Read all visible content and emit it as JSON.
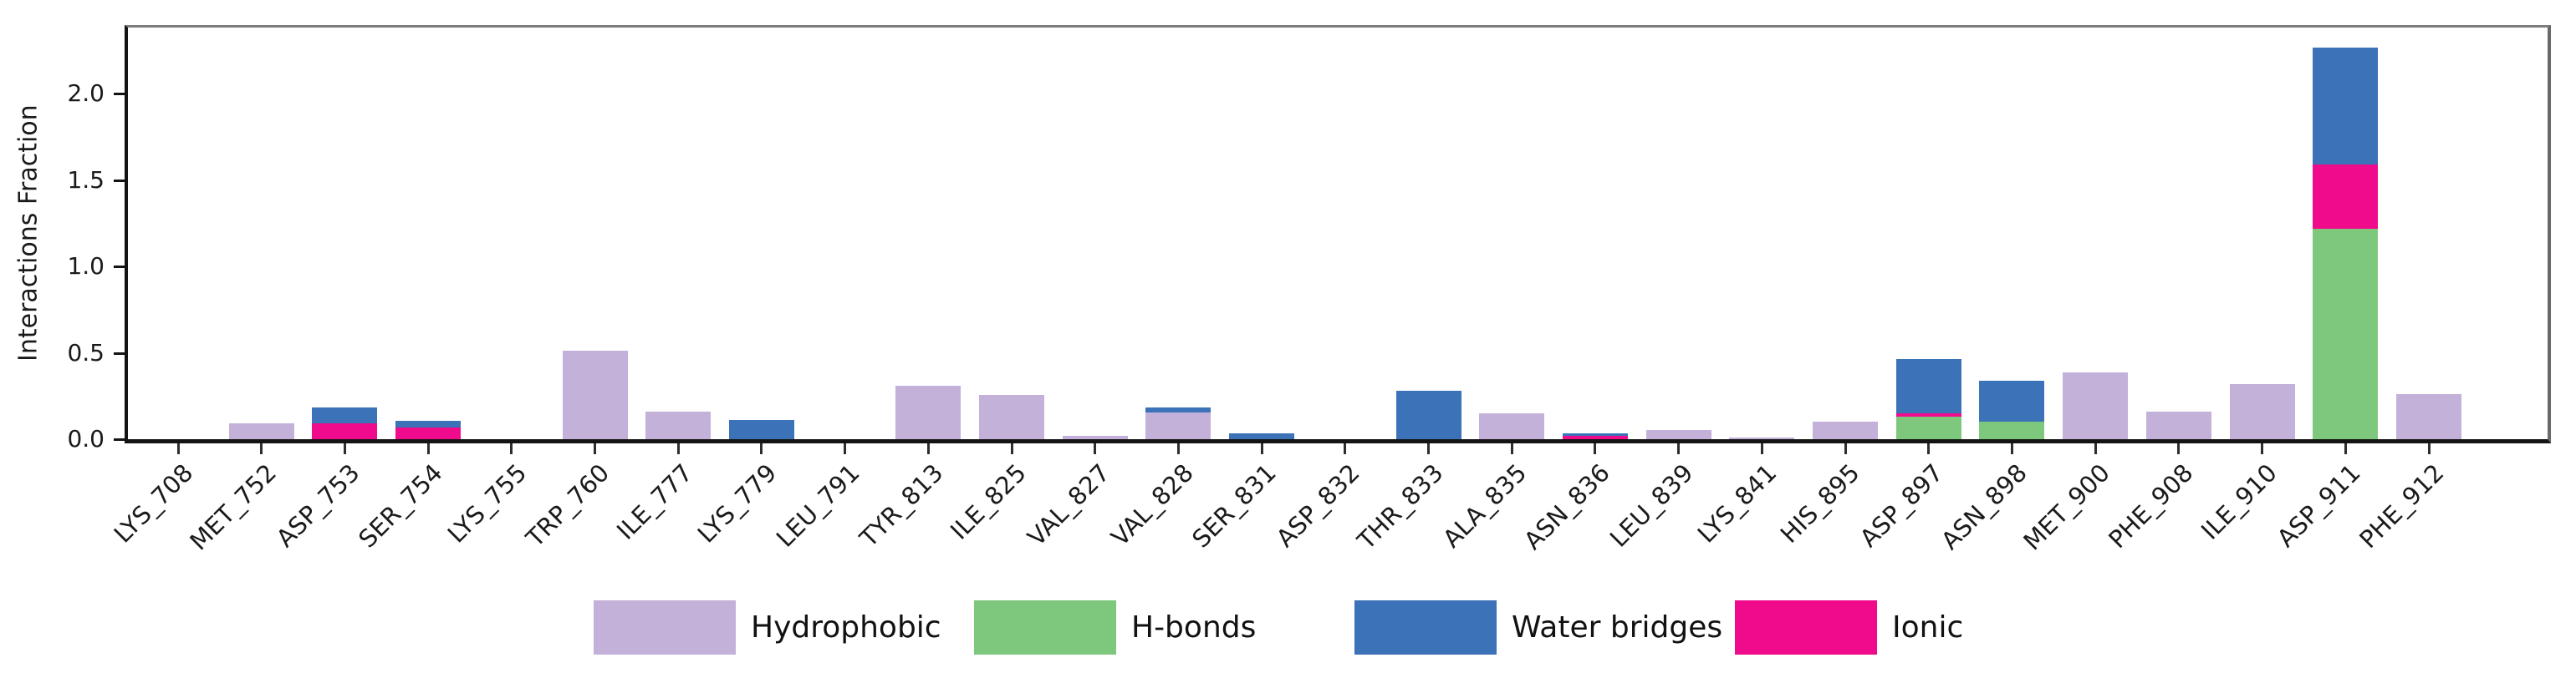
{
  "chart_data": {
    "type": "bar",
    "stacked": true,
    "title": "",
    "xlabel": "",
    "ylabel": "Interactions Fraction",
    "ylim": [
      0,
      2.38
    ],
    "yticks": [
      0.0,
      0.5,
      1.0,
      1.5,
      2.0
    ],
    "ytick_labels": [
      "0.0",
      "0.5",
      "1.0",
      "1.5",
      "2.0"
    ],
    "grid": false,
    "x_tick_rotation_deg": 45,
    "categories": [
      "LYS_708",
      "MET_752",
      "ASP_753",
      "SER_754",
      "LYS_755",
      "TRP_760",
      "ILE_777",
      "LYS_779",
      "LEU_791",
      "TYR_813",
      "ILE_825",
      "VAL_827",
      "VAL_828",
      "SER_831",
      "ASP_832",
      "THR_833",
      "ALA_835",
      "ASN_836",
      "LEU_839",
      "LYS_841",
      "HIS_895",
      "ASP_897",
      "ASN_898",
      "MET_900",
      "PHE_908",
      "ILE_910",
      "ASP_911",
      "PHE_912"
    ],
    "series": [
      {
        "name": "Hydrophobic",
        "color": "#c3b1d9",
        "values": [
          0,
          0.09,
          0,
          0,
          0,
          0.51,
          0.16,
          0,
          0,
          0.31,
          0.255,
          0.02,
          0.155,
          0,
          0,
          0,
          0.15,
          0,
          0.055,
          0.01,
          0.1,
          0,
          0,
          0.385,
          0.16,
          0.32,
          0,
          0.26
        ]
      },
      {
        "name": "H-bonds",
        "color": "#7dc87d",
        "values": [
          0,
          0,
          0,
          0,
          0,
          0,
          0,
          0,
          0,
          0,
          0,
          0,
          0,
          0,
          0,
          0,
          0,
          0,
          0,
          0,
          0,
          0.13,
          0.1,
          0,
          0,
          0,
          1.215,
          0
        ]
      },
      {
        "name": "Ionic",
        "color": "#ef0b8c",
        "values": [
          0,
          0,
          0.09,
          0.07,
          0,
          0,
          0,
          0,
          0,
          0,
          0,
          0,
          0,
          0,
          0,
          0,
          0,
          0.02,
          0,
          0,
          0,
          0.02,
          0,
          0,
          0,
          0,
          0.37,
          0
        ]
      },
      {
        "name": "Water bridges",
        "color": "#3b72b8",
        "values": [
          0,
          0,
          0.09,
          0.04,
          0,
          0,
          0,
          0.11,
          0,
          0,
          0,
          0,
          0.03,
          0.035,
          0,
          0.28,
          0,
          0.015,
          0,
          0,
          0,
          0.315,
          0.235,
          0,
          0,
          0,
          0.675,
          0
        ]
      }
    ],
    "stack_order_bottom_to_top": [
      "Hydrophobic",
      "H-bonds",
      "Ionic",
      "Water bridges"
    ],
    "legend": {
      "position": "bottom",
      "items": [
        {
          "label": "Hydrophobic",
          "color": "#c3b1d9"
        },
        {
          "label": "H-bonds",
          "color": "#7dc87d"
        },
        {
          "label": "Water bridges",
          "color": "#3b72b8"
        },
        {
          "label": "Ionic",
          "color": "#ef0b8c"
        }
      ]
    }
  }
}
